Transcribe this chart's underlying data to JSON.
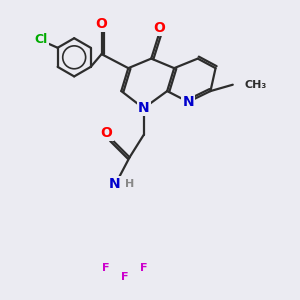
{
  "background_color": "#ebebf2",
  "bond_color": "#2d2d2d",
  "bond_width": 1.6,
  "atom_colors": {
    "O": "#ff0000",
    "N": "#0000cc",
    "Cl": "#00aa00",
    "F": "#cc00cc",
    "H": "#888888",
    "C": "#2d2d2d"
  },
  "font_size": 9,
  "fig_size": [
    3.0,
    3.0
  ],
  "dpi": 100
}
